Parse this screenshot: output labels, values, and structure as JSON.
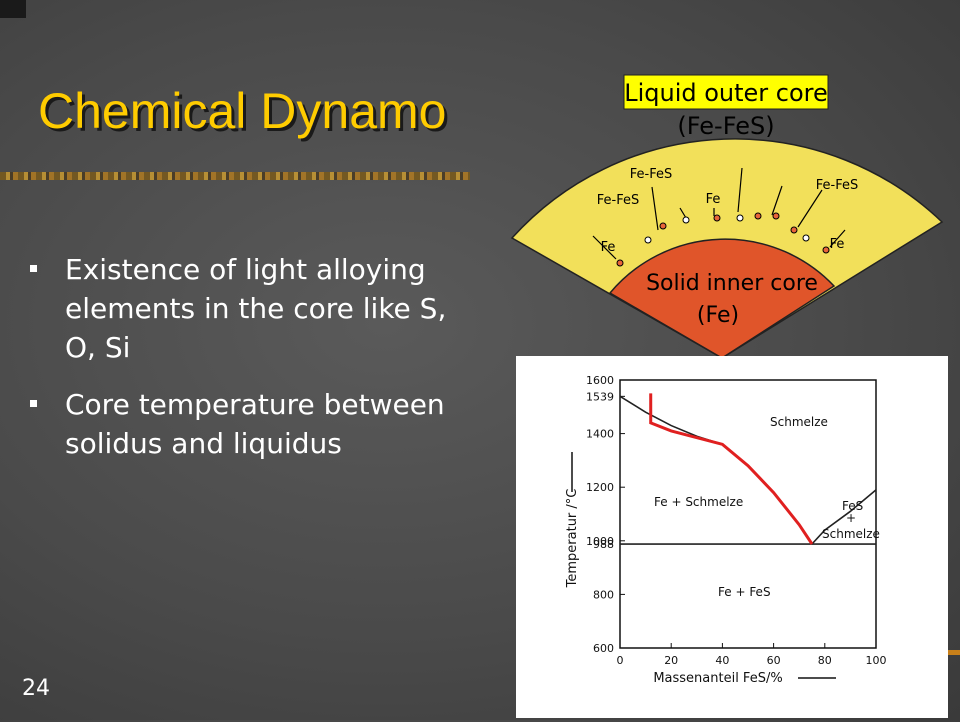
{
  "slide": {
    "title": "Chemical Dynamo",
    "number": "24",
    "bullets": [
      "Existence of light alloying elements in the core like S, O, Si",
      "Core temperature between solidus and liquidus"
    ]
  },
  "core_diagram": {
    "outer_label": "Liquid outer core",
    "outer_sub": "(Fe-FeS)",
    "inner_label": "Solid inner core",
    "inner_sub": "(Fe)",
    "left_labels": [
      "Fe-FeS",
      "Fe-FeS",
      "Fe"
    ],
    "mid_label": "Fe",
    "right_labels": [
      "Fe-FeS",
      "Fe"
    ],
    "colors": {
      "outer": "#f2e05a",
      "inner": "#e0552a",
      "label_box": "#ffff00"
    }
  },
  "phase_diagram": {
    "y_axis_label": "Temperatur /°C",
    "x_axis_label": "Massenanteil FeS/%",
    "y_ticks": [
      "1600",
      "1539",
      "1400",
      "1200",
      "1000",
      "988",
      "800",
      "600"
    ],
    "x_ticks": [
      "0",
      "20",
      "40",
      "60",
      "80",
      "100"
    ],
    "regions": {
      "melt": "Schmelze",
      "fe_melt": "Fe + Schmelze",
      "fes_melt_1": "FeS",
      "fes_melt_2": "+",
      "fes_melt_3": "Schmelze",
      "fe_fes": "Fe + FeS"
    },
    "colors": {
      "liquidus": "#222222",
      "highlight": "#e02020"
    }
  },
  "chart_data": {
    "type": "line",
    "xlabel": "Massenanteil FeS/%",
    "ylabel": "Temperatur /°C",
    "xlim": [
      0,
      100
    ],
    "ylim": [
      600,
      1600
    ],
    "series": [
      {
        "x": [
          0,
          10,
          20,
          30,
          40,
          50,
          60,
          70,
          75
        ],
        "y": [
          1539,
          1480,
          1430,
          1390,
          1360,
          1280,
          1180,
          1060,
          988
        ]
      },
      {
        "x": [
          75,
          80,
          90,
          100
        ],
        "y": [
          988,
          1040,
          1110,
          1190
        ]
      },
      {
        "x": [
          0,
          100
        ],
        "y": [
          988,
          988
        ]
      },
      {
        "x": [
          12,
          12,
          20,
          40,
          50,
          60,
          70,
          75
        ],
        "y": [
          1550,
          1440,
          1410,
          1360,
          1280,
          1180,
          1060,
          988
        ]
      }
    ]
  }
}
